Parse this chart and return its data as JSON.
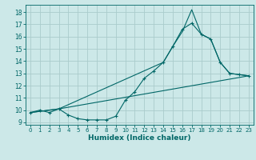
{
  "title": "",
  "xlabel": "Humidex (Indice chaleur)",
  "ylabel": "",
  "background_color": "#cce8e8",
  "grid_color": "#aacccc",
  "line_color": "#006666",
  "xlim": [
    -0.5,
    23.5
  ],
  "ylim": [
    8.8,
    18.6
  ],
  "yticks": [
    9,
    10,
    11,
    12,
    13,
    14,
    15,
    16,
    17,
    18
  ],
  "xticks": [
    0,
    1,
    2,
    3,
    4,
    5,
    6,
    7,
    8,
    9,
    10,
    11,
    12,
    13,
    14,
    15,
    16,
    17,
    18,
    19,
    20,
    21,
    22,
    23
  ],
  "series1_x": [
    0,
    1,
    2,
    3,
    4,
    5,
    6,
    7,
    8,
    9,
    10,
    11,
    12,
    13,
    14,
    15,
    16,
    17,
    18,
    19,
    20,
    21,
    22,
    23
  ],
  "series1_y": [
    9.8,
    10.0,
    9.8,
    10.1,
    9.6,
    9.3,
    9.2,
    9.2,
    9.2,
    9.5,
    10.8,
    11.5,
    12.6,
    13.2,
    13.9,
    15.2,
    16.6,
    17.1,
    16.2,
    15.8,
    13.9,
    13.0,
    12.9,
    12.8
  ],
  "series2_x": [
    0,
    3,
    14,
    15,
    16,
    17,
    18,
    19,
    20,
    21,
    22,
    23
  ],
  "series2_y": [
    9.8,
    10.1,
    13.9,
    15.2,
    16.4,
    18.2,
    16.2,
    15.8,
    13.9,
    13.0,
    12.9,
    12.8
  ],
  "series3_x": [
    0,
    3,
    23
  ],
  "series3_y": [
    9.8,
    10.1,
    12.8
  ]
}
